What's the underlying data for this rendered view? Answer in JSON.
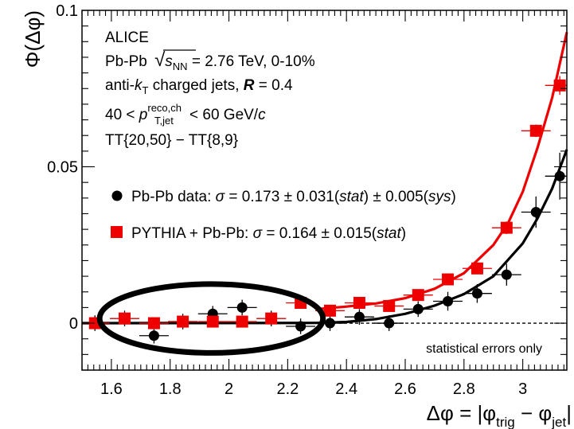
{
  "chart_data": {
    "type": "scatter",
    "xlabel_parts": {
      "prefix": "Δφ = |φ",
      "sub1": "trig",
      "mid": " − φ",
      "sub2": "jet",
      "suffix": "|"
    },
    "ylabel": "Φ(Δφ)",
    "xlim": [
      1.5,
      3.15
    ],
    "ylim": [
      -0.015,
      0.1
    ],
    "x_ticks": [
      1.6,
      1.8,
      2.0,
      2.2,
      2.4,
      2.6,
      2.8,
      3.0
    ],
    "x_tick_labels": [
      "1.6",
      "1.8",
      "2",
      "2.2",
      "2.4",
      "2.6",
      "2.8",
      "3"
    ],
    "y_ticks": [
      0,
      0.05,
      0.1
    ],
    "y_tick_labels": [
      "0",
      "0.05",
      "0.1"
    ],
    "grid": false,
    "legend_position": "center-left",
    "annotation_lines": {
      "experiment": "ALICE",
      "system": "Pb-Pb",
      "sqrt_s": "s",
      "sqrt_s_sub": "NN",
      "energy": " = 2.76 TeV, 0-10%",
      "algo_prefix": "anti-",
      "algo_k": "k",
      "algo_k_sub": "T",
      "algo_suffix": " charged jets, ",
      "radius_symbol": "R",
      "radius_value": " = 0.4",
      "pt_prefix": "40 < ",
      "pt_symbol": "p",
      "pt_sup": "reco,ch",
      "pt_sub": "T,jet",
      "pt_suffix": " < 60 GeV/",
      "pt_c": "c",
      "tt_selection": "TT{20,50} − TT{8,9}"
    },
    "stat_note": "statistical errors only",
    "legend": [
      {
        "marker": "circle",
        "color": "#000000",
        "label_prefix": "Pb-Pb data: ",
        "sigma": "σ",
        "label_value": " = 0.173 ± 0.031(",
        "stat": "stat",
        "sep": ") ± 0.005(",
        "sys": "sys",
        "close": ")"
      },
      {
        "marker": "square",
        "color": "#ee0000",
        "label_prefix": "PYTHIA + Pb-Pb: ",
        "sigma": "σ",
        "label_value": " = 0.164 ± 0.015(",
        "stat": "stat",
        "close": ")"
      }
    ],
    "series": [
      {
        "name": "Pb-Pb data",
        "marker": "circle",
        "color": "#000000",
        "x": [
          1.544,
          1.645,
          1.745,
          1.843,
          1.945,
          2.045,
          2.144,
          2.244,
          2.344,
          2.444,
          2.545,
          2.644,
          2.745,
          2.845,
          2.945,
          3.045,
          3.126
        ],
        "y": [
          0.0,
          0.0015,
          -0.004,
          0.0005,
          0.003,
          0.005,
          0.0015,
          -0.001,
          0.0,
          0.002,
          0.0,
          0.0045,
          0.007,
          0.0095,
          0.0155,
          0.0355,
          0.047
        ],
        "y_err": [
          0.0025,
          0.0025,
          0.0025,
          0.0025,
          0.0025,
          0.0025,
          0.0025,
          0.0025,
          0.0025,
          0.0025,
          0.0025,
          0.0025,
          0.003,
          0.003,
          0.0035,
          0.005,
          0.0075
        ]
      },
      {
        "name": "PYTHIA + Pb-Pb",
        "marker": "square",
        "color": "#ee0000",
        "x": [
          1.544,
          1.645,
          1.745,
          1.843,
          1.945,
          2.045,
          2.144,
          2.244,
          2.344,
          2.444,
          2.545,
          2.644,
          2.745,
          2.845,
          2.945,
          3.045,
          3.126
        ],
        "y": [
          0.0,
          0.0015,
          0.0,
          0.0005,
          0.0005,
          0.0005,
          0.0015,
          0.0065,
          0.004,
          0.0065,
          0.0055,
          0.009,
          0.014,
          0.0175,
          0.0305,
          0.0615,
          0.076
        ],
        "y_err": [
          0.001,
          0.001,
          0.001,
          0.001,
          0.001,
          0.001,
          0.001,
          0.0015,
          0.001,
          0.001,
          0.001,
          0.001,
          0.0015,
          0.0015,
          0.002,
          0.002,
          0.003
        ]
      }
    ],
    "curves": [
      {
        "color": "#000000",
        "x": [
          1.5,
          2.3,
          2.4,
          2.5,
          2.6,
          2.7,
          2.8,
          2.9,
          3.0,
          3.05,
          3.1,
          3.15
        ],
        "y": [
          0.0,
          0.0001,
          0.0004,
          0.0013,
          0.003,
          0.0056,
          0.0093,
          0.015,
          0.0255,
          0.0335,
          0.043,
          0.0555
        ]
      },
      {
        "color": "#ee0000",
        "x": [
          2.3,
          2.4,
          2.5,
          2.6,
          2.7,
          2.8,
          2.9,
          2.95,
          3.0,
          3.05,
          3.1,
          3.15
        ],
        "y": [
          0.0045,
          0.0053,
          0.0063,
          0.008,
          0.011,
          0.016,
          0.025,
          0.032,
          0.042,
          0.056,
          0.072,
          0.093
        ]
      }
    ],
    "highlight": {
      "shape": "ellipse",
      "x_range": [
        1.56,
        2.32
      ],
      "y_range": [
        -0.0095,
        0.0125
      ]
    }
  }
}
